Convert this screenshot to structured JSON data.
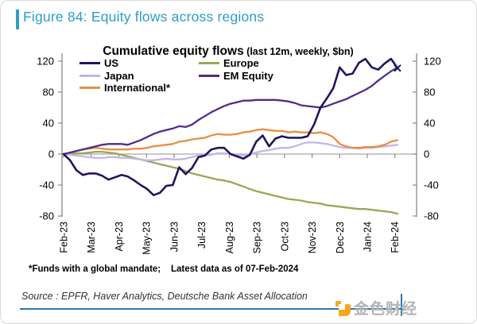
{
  "figure": {
    "title": "Figure 84: Equity flows across regions",
    "accent_color": "#2e9cc9"
  },
  "chart_data": {
    "type": "line",
    "title": "Cumulative equity flows",
    "title_suffix": " (last 12m, weekly, $bn)",
    "frequency": "weekly",
    "x_tick_labels": [
      "Feb-23",
      "Mar-23",
      "Apr-23",
      "May-23",
      "Jun-23",
      "Jul-23",
      "Aug-23",
      "Sep-23",
      "Oct-23",
      "Nov-23",
      "Dec-23",
      "Jan-24",
      "Feb-24"
    ],
    "y_ticks": [
      120,
      80,
      40,
      0,
      -40,
      -80
    ],
    "ylim": [
      -80,
      120
    ],
    "grid": "zero-line-only",
    "legend_position": "top-left-two-columns",
    "legend_columns": [
      [
        "US",
        "Japan",
        "International*"
      ],
      [
        "Europe",
        "EM Equity"
      ]
    ],
    "end_marker_series": "US",
    "series": [
      {
        "name": "Europe",
        "color": "#9aa754",
        "values": [
          0,
          0,
          1,
          1,
          2,
          3,
          3,
          2,
          1,
          -1,
          -3,
          -5,
          -7,
          -9,
          -11,
          -13,
          -15,
          -17,
          -19,
          -22,
          -25,
          -27,
          -29,
          -31,
          -33,
          -34,
          -36,
          -39,
          -42,
          -45,
          -48,
          -50,
          -52,
          -54,
          -56,
          -58,
          -59,
          -60,
          -62,
          -63,
          -64,
          -66,
          -67,
          -68,
          -69,
          -70,
          -71,
          -71,
          -72,
          -73,
          -74,
          -75,
          -77
        ]
      },
      {
        "name": "Japan",
        "color": "#c6b5e8",
        "values": [
          0,
          -1,
          -2,
          -3,
          -4,
          -5,
          -5,
          -4,
          -4,
          -5,
          -5,
          -6,
          -7,
          -8,
          -8,
          -7,
          -6,
          -7,
          -7,
          -6,
          -4,
          -2,
          -2,
          -1,
          1,
          1,
          0,
          -1,
          -2,
          0,
          2,
          4,
          5,
          7,
          8,
          8,
          10,
          13,
          15,
          15,
          14,
          13,
          11,
          9,
          8,
          8,
          7,
          8,
          8,
          9,
          10,
          11,
          12
        ]
      },
      {
        "name": "International*",
        "color": "#e88f45",
        "values": [
          0,
          2,
          4,
          6,
          7,
          8,
          7,
          6,
          6,
          6,
          6,
          7,
          7,
          8,
          10,
          11,
          12,
          13,
          16,
          17,
          19,
          20,
          21,
          24,
          26,
          25,
          25,
          26,
          28,
          29,
          31,
          32,
          31,
          30,
          30,
          28,
          29,
          28,
          28,
          27,
          28,
          26,
          22,
          13,
          10,
          8,
          8,
          9,
          9,
          10,
          12,
          16,
          18
        ]
      },
      {
        "name": "EM Equity",
        "color": "#512c87",
        "values": [
          0,
          2,
          4,
          6,
          8,
          10,
          12,
          13,
          13,
          13,
          12,
          15,
          18,
          22,
          26,
          29,
          31,
          33,
          36,
          35,
          38,
          44,
          49,
          54,
          58,
          62,
          65,
          67,
          69,
          69,
          70,
          70,
          70,
          70,
          69,
          68,
          66,
          63,
          62,
          61,
          60,
          62,
          65,
          68,
          71,
          75,
          79,
          83,
          88,
          95,
          101,
          107,
          112
        ]
      },
      {
        "name": "US",
        "color": "#1b175e",
        "values": [
          0,
          -8,
          -21,
          -27,
          -25,
          -25,
          -28,
          -33,
          -30,
          -27,
          -29,
          -34,
          -40,
          -45,
          -53,
          -50,
          -41,
          -40,
          -17,
          -26,
          -18,
          -4,
          -2,
          6,
          8,
          8,
          0,
          -3,
          -6,
          -1,
          16,
          24,
          10,
          20,
          23,
          21,
          21,
          21,
          23,
          38,
          60,
          72,
          85,
          112,
          102,
          104,
          118,
          123,
          112,
          109,
          117,
          123,
          111
        ]
      }
    ]
  },
  "footnote": {
    "left": "*Funds with a global mandate;",
    "right": "Latest data as of 07-Feb-2024"
  },
  "source": "Source : EPFR, Haver Analytics, Deutsche Bank Asset Allocation",
  "watermark": {
    "text": "金色财经"
  }
}
